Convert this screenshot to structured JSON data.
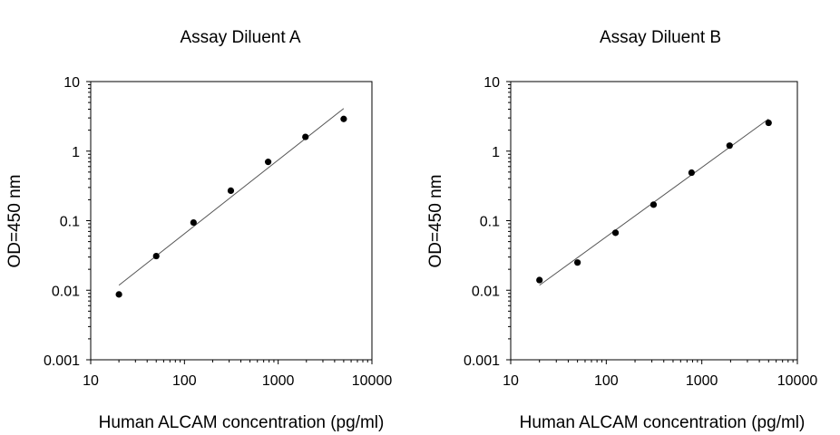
{
  "chart_data": [
    {
      "type": "scatter",
      "title": "Assay Diluent A",
      "xlabel": "Human ALCAM concentration (pg/ml)",
      "ylabel": "OD=450 nm",
      "xscale": "log",
      "yscale": "log",
      "xlim": [
        10,
        10000
      ],
      "ylim": [
        0.001,
        10
      ],
      "xticks": [
        {
          "value": 10,
          "label": "10"
        },
        {
          "value": 100,
          "label": "100"
        },
        {
          "value": 1000,
          "label": "1000"
        },
        {
          "value": 10000,
          "label": "10000"
        }
      ],
      "yticks": [
        {
          "value": 0.001,
          "label": "0.001"
        },
        {
          "value": 0.01,
          "label": "0.01"
        },
        {
          "value": 0.1,
          "label": "0.1"
        },
        {
          "value": 1,
          "label": "1"
        },
        {
          "value": 10,
          "label": "10"
        }
      ],
      "series": [
        {
          "name": "Assay Diluent A",
          "x": [
            20,
            50,
            125,
            312.5,
            781.25,
            1953,
            5000
          ],
          "y": [
            0.0087,
            0.031,
            0.094,
            0.27,
            0.7,
            1.6,
            2.9
          ]
        }
      ],
      "fit_line": {
        "x": [
          20,
          5000
        ],
        "y": [
          0.0118,
          4.1
        ]
      },
      "grid": false,
      "legend": "none"
    },
    {
      "type": "scatter",
      "title": "Assay Diluent B",
      "xlabel": "Human ALCAM concentration (pg/ml)",
      "ylabel": "OD=450 nm",
      "xscale": "log",
      "yscale": "log",
      "xlim": [
        10,
        10000
      ],
      "ylim": [
        0.001,
        10
      ],
      "xticks": [
        {
          "value": 10,
          "label": "10"
        },
        {
          "value": 100,
          "label": "100"
        },
        {
          "value": 1000,
          "label": "1000"
        },
        {
          "value": 10000,
          "label": "10000"
        }
      ],
      "yticks": [
        {
          "value": 0.001,
          "label": "0.001"
        },
        {
          "value": 0.01,
          "label": "0.01"
        },
        {
          "value": 0.1,
          "label": "0.1"
        },
        {
          "value": 1,
          "label": "1"
        },
        {
          "value": 10,
          "label": "10"
        }
      ],
      "series": [
        {
          "name": "Assay Diluent B",
          "x": [
            20,
            50,
            125,
            312.5,
            781.25,
            1953,
            5000
          ],
          "y": [
            0.014,
            0.025,
            0.067,
            0.17,
            0.49,
            1.2,
            2.55
          ]
        }
      ],
      "fit_line": {
        "x": [
          20,
          5000
        ],
        "y": [
          0.0118,
          2.9
        ]
      },
      "grid": false,
      "legend": "none"
    }
  ]
}
